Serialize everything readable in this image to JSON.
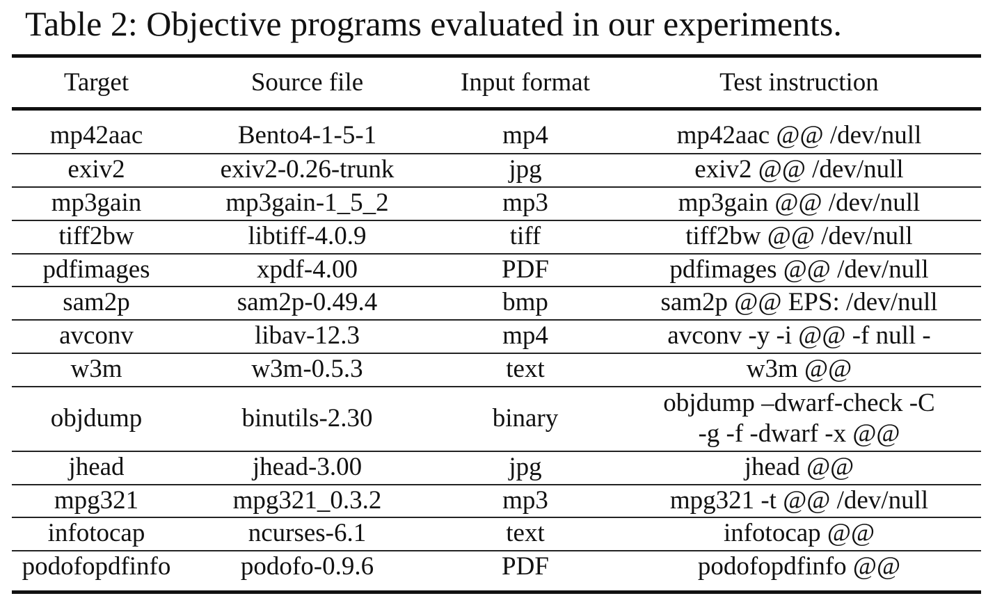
{
  "caption": "Table 2: Objective programs evaluated in our experiments.",
  "table": {
    "headers": [
      "Target",
      "Source file",
      "Input format",
      "Test instruction"
    ],
    "rows": [
      {
        "target": "mp42aac",
        "source": "Bento4-1-5-1",
        "format": "mp4",
        "instruction": "mp42aac @@ /dev/null"
      },
      {
        "target": "exiv2",
        "source": "exiv2-0.26-trunk",
        "format": "jpg",
        "instruction": "exiv2 @@ /dev/null"
      },
      {
        "target": "mp3gain",
        "source": "mp3gain-1_5_2",
        "format": "mp3",
        "instruction": "mp3gain @@ /dev/null"
      },
      {
        "target": "tiff2bw",
        "source": "libtiff-4.0.9",
        "format": "tiff",
        "instruction": "tiff2bw @@ /dev/null"
      },
      {
        "target": "pdfimages",
        "source": "xpdf-4.00",
        "format": "PDF",
        "instruction": "pdfimages @@ /dev/null"
      },
      {
        "target": "sam2p",
        "source": "sam2p-0.49.4",
        "format": "bmp",
        "instruction": "sam2p @@ EPS: /dev/null"
      },
      {
        "target": "avconv",
        "source": "libav-12.3",
        "format": "mp4",
        "instruction": "avconv -y -i @@ -f null -"
      },
      {
        "target": "w3m",
        "source": "w3m-0.5.3",
        "format": "text",
        "instruction": "w3m @@"
      },
      {
        "target": "objdump",
        "source": "binutils-2.30",
        "format": "binary",
        "instruction_line1": "objdump –dwarf-check -C",
        "instruction_line2": "-g -f -dwarf -x @@"
      },
      {
        "target": "jhead",
        "source": "jhead-3.00",
        "format": "jpg",
        "instruction": "jhead @@"
      },
      {
        "target": "mpg321",
        "source": "mpg321_0.3.2",
        "format": "mp3",
        "instruction": "mpg321 -t @@ /dev/null"
      },
      {
        "target": "infotocap",
        "source": "ncurses-6.1",
        "format": "text",
        "instruction": "infotocap @@"
      },
      {
        "target": "podofopdfinfo",
        "source": "podofo-0.9.6",
        "format": "PDF",
        "instruction": "podofopdfinfo @@"
      }
    ]
  }
}
